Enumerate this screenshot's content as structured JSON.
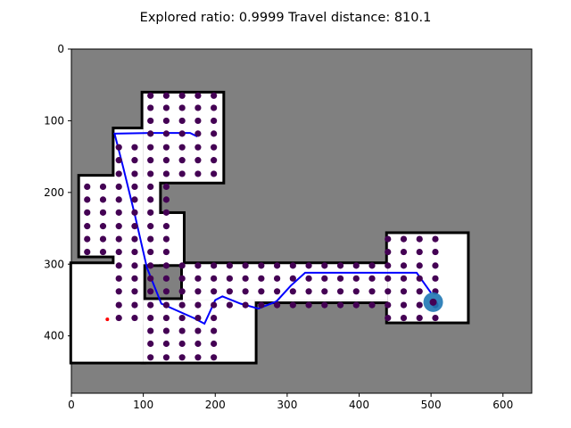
{
  "chart_data": {
    "type": "scatter",
    "title": "Explored ratio: 0.9999  Travel distance: 810.1",
    "xlabel": "",
    "ylabel": "",
    "xlim": [
      0,
      640
    ],
    "ylim": [
      480,
      0
    ],
    "y_inverted": true,
    "xticks": [
      0,
      100,
      200,
      300,
      400,
      500,
      600
    ],
    "yticks": [
      0,
      100,
      200,
      300,
      400
    ],
    "grid": false,
    "colors": {
      "unknown": "#808080",
      "free": "#ffffff",
      "obstacle": "#000000",
      "frontier_points": "#440154",
      "path": "#0000ff",
      "robot": "#1f77b4",
      "start_marker": "#ff0000"
    },
    "free_regions": [
      {
        "x": [
          100,
          210
        ],
        "y": [
          62,
          185
        ]
      },
      {
        "x": [
          60,
          100
        ],
        "y": [
          112,
          385
        ]
      },
      {
        "x": [
          12,
          100
        ],
        "y": [
          178,
          288
        ]
      },
      {
        "x": [
          100,
          122
        ],
        "y": [
          178,
          300
        ]
      },
      {
        "x": [
          100,
          155
        ],
        "y": [
          230,
          300
        ]
      },
      {
        "x": [
          100,
          1
        ],
        "y": [
          300,
          436
        ]
      },
      {
        "x": [
          155,
          440
        ],
        "y": [
          300,
          350
        ]
      },
      {
        "x": [
          100,
          255
        ],
        "y": [
          350,
          436
        ]
      },
      {
        "x": [
          255,
          440
        ],
        "y": [
          350,
          352
        ]
      },
      {
        "x": [
          440,
          550
        ],
        "y": [
          258,
          380
        ]
      }
    ],
    "frontier_point_rows": [
      {
        "y": 65,
        "x": [
          110,
          132,
          154,
          176,
          198
        ]
      },
      {
        "y": 82,
        "x": [
          110,
          132,
          154,
          176,
          198
        ]
      },
      {
        "y": 100,
        "x": [
          110,
          132,
          154,
          176,
          198
        ]
      },
      {
        "y": 118,
        "x": [
          110,
          132,
          154,
          176,
          198
        ]
      },
      {
        "y": 137,
        "x": [
          66,
          88,
          110,
          132,
          154,
          176,
          198
        ]
      },
      {
        "y": 155,
        "x": [
          66,
          88,
          110,
          132,
          154,
          176,
          198
        ]
      },
      {
        "y": 174,
        "x": [
          66,
          88,
          110,
          132,
          154,
          176,
          198
        ]
      },
      {
        "y": 192,
        "x": [
          22,
          44,
          66,
          88,
          110,
          132
        ]
      },
      {
        "y": 210,
        "x": [
          22,
          44,
          66,
          88,
          110,
          132
        ]
      },
      {
        "y": 228,
        "x": [
          22,
          44,
          66,
          88,
          110,
          132
        ]
      },
      {
        "y": 247,
        "x": [
          22,
          44,
          66,
          88,
          110,
          132
        ]
      },
      {
        "y": 265,
        "x": [
          22,
          44,
          66,
          88,
          110,
          132
        ]
      },
      {
        "y": 283,
        "x": [
          22,
          44,
          66,
          88,
          110,
          132
        ]
      },
      {
        "y": 265,
        "x": [
          440,
          462,
          484,
          506
        ]
      },
      {
        "y": 283,
        "x": [
          440,
          462,
          484,
          506
        ]
      },
      {
        "y": 302,
        "x": [
          66,
          88,
          110,
          132,
          154,
          176,
          198,
          220,
          242,
          264,
          286,
          308,
          330,
          352,
          374,
          396,
          418,
          440,
          462,
          484,
          506
        ]
      },
      {
        "y": 320,
        "x": [
          66,
          88,
          110,
          132,
          154,
          176,
          198,
          220,
          242,
          264,
          286,
          308,
          330,
          352,
          374,
          396,
          418,
          440,
          462,
          484,
          506
        ]
      },
      {
        "y": 338,
        "x": [
          66,
          88,
          110,
          132,
          154,
          176,
          198,
          220,
          242,
          264,
          286,
          308,
          330,
          352,
          374,
          396,
          418,
          440,
          462,
          484,
          506
        ]
      },
      {
        "y": 357,
        "x": [
          66,
          88,
          110,
          132,
          154,
          176,
          198,
          220,
          242,
          264,
          286,
          308,
          330,
          352,
          374,
          396,
          418,
          440,
          462,
          484,
          506
        ]
      },
      {
        "y": 375,
        "x": [
          66,
          88,
          110,
          132,
          154,
          176,
          198,
          440,
          462,
          484,
          506
        ]
      },
      {
        "y": 393,
        "x": [
          110,
          132,
          154,
          176,
          198
        ]
      },
      {
        "y": 411,
        "x": [
          110,
          132,
          154,
          176,
          198
        ]
      },
      {
        "y": 430,
        "x": [
          110,
          132,
          154,
          176,
          198
        ]
      }
    ],
    "path": {
      "x": [
        175,
        165,
        110,
        60,
        72,
        88,
        105,
        125,
        170,
        185,
        200,
        210,
        235,
        260,
        285,
        305,
        325,
        345,
        360,
        380,
        410,
        450,
        480,
        500
      ],
      "y": [
        122,
        117,
        117,
        118,
        165,
        230,
        305,
        355,
        375,
        383,
        350,
        345,
        355,
        362,
        352,
        330,
        312,
        312,
        312,
        312,
        312,
        312,
        312,
        340
      ]
    },
    "robot_position": {
      "x": 503,
      "y": 353
    },
    "start_marker": {
      "x": 50,
      "y": 377
    }
  }
}
